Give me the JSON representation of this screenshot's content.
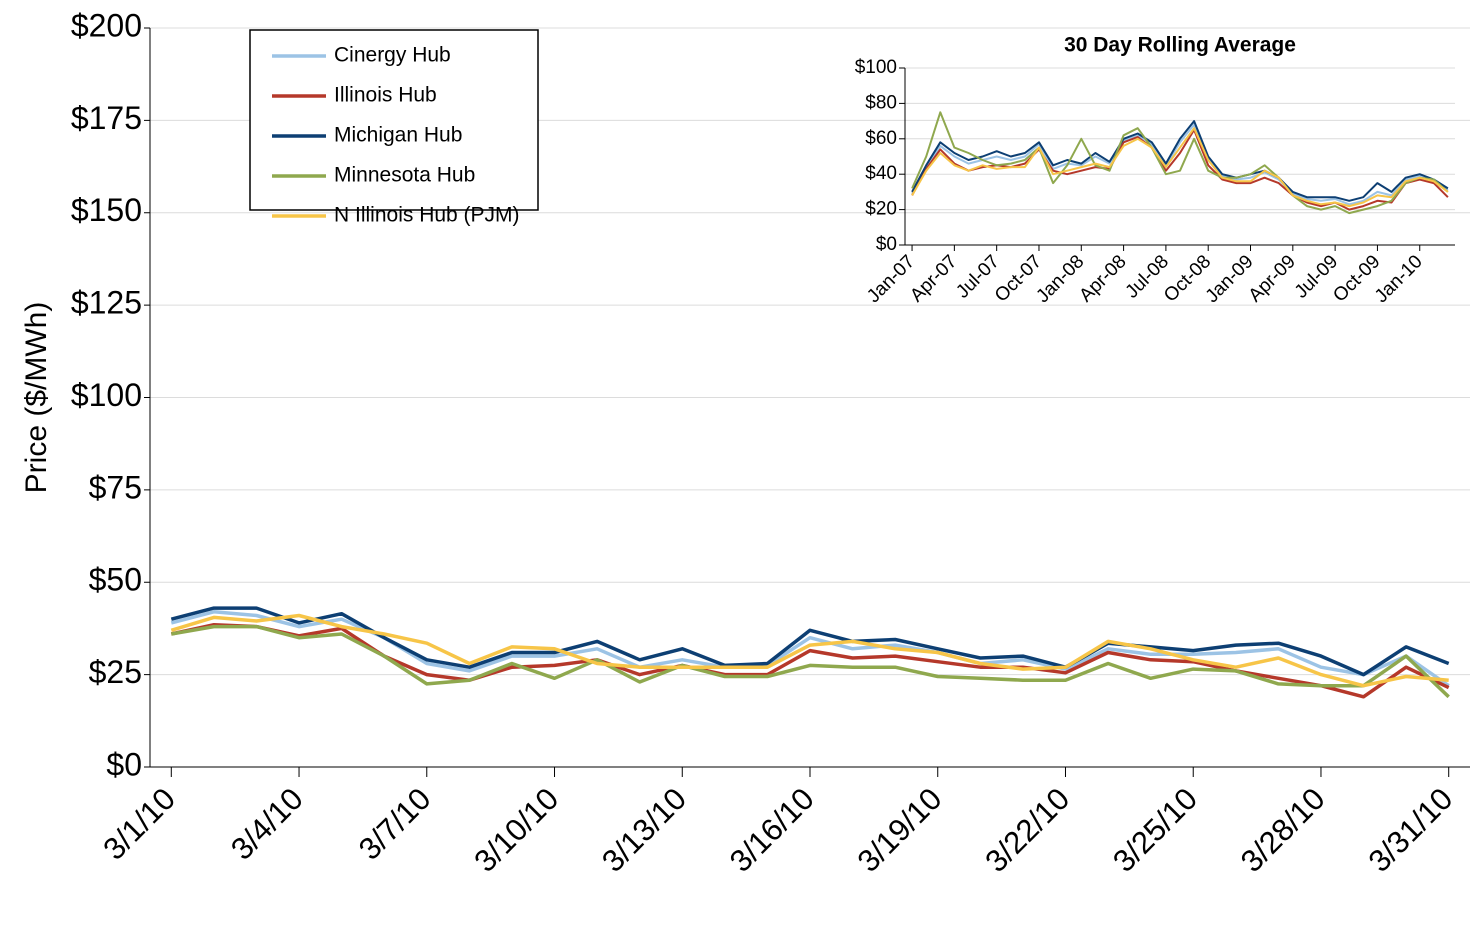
{
  "chart_data": [
    {
      "type": "line",
      "y_label": "Price ($/MWh)",
      "categories": [
        "3/1/10",
        null,
        null,
        "3/4/10",
        null,
        null,
        "3/7/10",
        null,
        null,
        "3/10/10",
        null,
        null,
        "3/13/10",
        null,
        null,
        "3/16/10",
        null,
        null,
        "3/19/10",
        null,
        null,
        "3/22/10",
        null,
        null,
        "3/25/10",
        null,
        null,
        "3/28/10",
        null,
        null,
        "3/31/10"
      ],
      "ylim": [
        0,
        200
      ],
      "yticks": [
        {
          "value": 0,
          "label": "$0"
        },
        {
          "value": 25,
          "label": "$25"
        },
        {
          "value": 50,
          "label": "$50"
        },
        {
          "value": 75,
          "label": "$75"
        },
        {
          "value": 100,
          "label": "$100"
        },
        {
          "value": 125,
          "label": "$125"
        },
        {
          "value": 150,
          "label": "$150"
        },
        {
          "value": 175,
          "label": "$175"
        },
        {
          "value": 200,
          "label": "$200"
        }
      ],
      "grid": true,
      "legend": "upper-left",
      "series": [
        {
          "name": "Cinergy Hub",
          "color": "#9cc3e5",
          "values": [
            39,
            42,
            41,
            38,
            40,
            35,
            28,
            26,
            30,
            30,
            32,
            27,
            29,
            27,
            27.5,
            35,
            32,
            33,
            31,
            28,
            29,
            26.5,
            32,
            30.5,
            30.5,
            31,
            32,
            27,
            25,
            30,
            22
          ]
        },
        {
          "name": "Illinois Hub",
          "color": "#b5382a",
          "values": [
            36,
            38.5,
            38,
            35.5,
            37.5,
            30,
            25,
            23.5,
            27,
            27.5,
            29,
            25,
            27.5,
            25,
            25,
            31.5,
            29.5,
            30,
            28.5,
            27,
            27,
            25.5,
            31,
            29,
            28.5,
            26,
            24,
            22,
            19,
            27,
            21.5
          ]
        },
        {
          "name": "Michigan Hub",
          "color": "#0d3f73",
          "values": [
            40,
            43,
            43,
            39,
            41.5,
            35,
            29,
            27,
            31,
            31,
            34,
            29,
            32,
            27.5,
            28,
            37,
            34,
            34.5,
            32,
            29.5,
            30,
            27,
            33.5,
            32.5,
            31.5,
            33,
            33.5,
            30,
            25,
            32.5,
            28
          ]
        },
        {
          "name": "Minnesota Hub",
          "color": "#8fa84e",
          "values": [
            36,
            38,
            38,
            35,
            36,
            30,
            22.5,
            23.5,
            28,
            24,
            29,
            23,
            27.5,
            24.5,
            24.5,
            27.5,
            27,
            27,
            24.5,
            24,
            23.5,
            23.5,
            28,
            24,
            26.5,
            26,
            22.5,
            22,
            22,
            30,
            19
          ]
        },
        {
          "name": "N Illinois Hub (PJM)",
          "color": "#f7c548",
          "values": [
            37,
            40.5,
            39.5,
            41,
            38,
            36,
            33.5,
            28,
            32.5,
            32,
            28,
            27,
            27,
            27,
            27,
            33,
            34,
            32,
            31,
            28,
            26.5,
            27,
            34,
            32,
            29,
            27,
            29.5,
            25,
            22,
            24.5,
            23.5
          ]
        }
      ]
    },
    {
      "type": "line",
      "title": "30 Day Rolling Average",
      "categories": [
        "Jan-07",
        null,
        null,
        "Apr-07",
        null,
        null,
        "Jul-07",
        null,
        null,
        "Oct-07",
        null,
        null,
        "Jan-08",
        null,
        null,
        "Apr-08",
        null,
        null,
        "Jul-08",
        null,
        null,
        "Oct-08",
        null,
        null,
        "Jan-09",
        null,
        null,
        "Apr-09",
        null,
        null,
        "Jul-09",
        null,
        null,
        "Oct-09",
        null,
        null,
        "Jan-10",
        null,
        null
      ],
      "ylim": [
        0,
        100
      ],
      "yticks": [
        {
          "value": 0,
          "label": "$0"
        },
        {
          "value": 20,
          "label": "$20"
        },
        {
          "value": 40,
          "label": "$40"
        },
        {
          "value": 60,
          "label": "$60"
        },
        {
          "value": 80,
          "label": "$80"
        },
        {
          "value": 100,
          "label": "$100"
        }
      ],
      "grid": true,
      "series": [
        {
          "name": "Cinergy Hub",
          "color": "#9cc3e5",
          "values": [
            29,
            44,
            56,
            50,
            46,
            48,
            50,
            48,
            50,
            57,
            43,
            46,
            45,
            50,
            46,
            59,
            62,
            57,
            45,
            58,
            68,
            48,
            39,
            37,
            38,
            41,
            37,
            29,
            26,
            25,
            26,
            23,
            25,
            30,
            28,
            37,
            39,
            36,
            31
          ]
        },
        {
          "name": "Illinois Hub",
          "color": "#b5382a",
          "values": [
            28,
            43,
            54,
            46,
            42,
            44,
            45,
            44,
            46,
            54,
            42,
            40,
            42,
            44,
            43,
            58,
            61,
            55,
            42,
            52,
            65,
            45,
            37,
            35,
            35,
            38,
            35,
            28,
            24,
            22,
            24,
            20,
            22,
            25,
            24,
            35,
            37,
            35,
            27
          ]
        },
        {
          "name": "Michigan Hub",
          "color": "#0d3f73",
          "values": [
            30,
            45,
            58,
            52,
            48,
            50,
            53,
            50,
            52,
            58,
            45,
            48,
            46,
            52,
            47,
            60,
            63,
            58,
            46,
            60,
            70,
            50,
            40,
            38,
            40,
            42,
            38,
            30,
            27,
            27,
            27,
            25,
            27,
            35,
            30,
            38,
            40,
            37,
            32
          ]
        },
        {
          "name": "Minnesota Hub",
          "color": "#8fa84e",
          "values": [
            32,
            50,
            75,
            55,
            52,
            48,
            45,
            46,
            48,
            55,
            35,
            45,
            60,
            45,
            42,
            62,
            66,
            55,
            40,
            42,
            60,
            42,
            38,
            38,
            40,
            45,
            38,
            28,
            22,
            20,
            22,
            18,
            20,
            22,
            25,
            35,
            38,
            37,
            30
          ]
        },
        {
          "name": "N Illinois Hub (PJM)",
          "color": "#f7c548",
          "values": [
            28,
            42,
            52,
            45,
            42,
            45,
            43,
            44,
            44,
            55,
            40,
            42,
            44,
            46,
            44,
            56,
            60,
            55,
            44,
            55,
            66,
            48,
            38,
            36,
            36,
            42,
            38,
            28,
            25,
            23,
            24,
            22,
            24,
            28,
            27,
            36,
            38,
            36,
            30
          ]
        }
      ]
    }
  ]
}
